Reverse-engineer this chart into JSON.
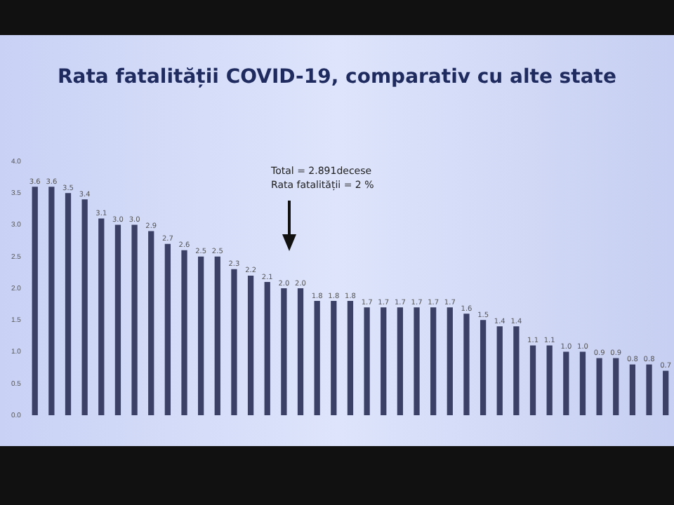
{
  "chart_data": {
    "type": "bar",
    "title": "Rata fatalității COVID-19, comparativ cu alte state",
    "categories": [
      null,
      null,
      null,
      null,
      null,
      null,
      null,
      null,
      null,
      null,
      null,
      null,
      null,
      null,
      null,
      null,
      null,
      null,
      null,
      null,
      null,
      null,
      null,
      null,
      null,
      null,
      null,
      null,
      null,
      null,
      null,
      null,
      null,
      null,
      null,
      null,
      null,
      null,
      null
    ],
    "values": [
      3.6,
      3.6,
      3.5,
      3.4,
      3.1,
      3.0,
      3.0,
      2.9,
      2.7,
      2.6,
      2.5,
      2.5,
      2.3,
      2.2,
      2.1,
      2.0,
      2.0,
      1.8,
      1.8,
      1.8,
      1.7,
      1.7,
      1.7,
      1.7,
      1.7,
      1.7,
      1.6,
      1.5,
      1.4,
      1.4,
      1.1,
      1.1,
      1.0,
      1.0,
      0.9,
      0.9,
      0.8,
      0.8,
      0.7
    ],
    "color": "#3b4066",
    "ylim": [
      0,
      4
    ],
    "yticks": [
      {
        "value": 0,
        "label": "0.0"
      },
      {
        "value": 0.5,
        "label": "0.5"
      },
      {
        "value": 1,
        "label": "1.0"
      },
      {
        "value": 1.5,
        "label": "1.5"
      },
      {
        "value": 2,
        "label": "2.0"
      },
      {
        "value": 2.5,
        "label": "2.5"
      },
      {
        "value": 3,
        "label": "3.0"
      },
      {
        "value": 3.5,
        "label": "3.5"
      },
      {
        "value": 4,
        "label": "4.0"
      }
    ],
    "grid": false,
    "value_labels": [
      "3.6",
      "3.6",
      "3.5",
      "3.4",
      "3.1",
      "3.0",
      "3.0",
      "2.9",
      "2.7",
      "2.6",
      "2.5",
      "2.5",
      "2.3",
      "2.2",
      "2.1",
      "2.0",
      "2.0",
      "1.8",
      "1.8",
      "1.8",
      "1.7",
      "1.7",
      "1.7",
      "1.7",
      "1.7",
      "1.7",
      "1.6",
      "1.5",
      "1.4",
      "1.4",
      "1.1",
      "1.1",
      "1.0",
      "1.0",
      "0.9",
      "0.9",
      "0.8",
      "0.8",
      "0.7"
    ],
    "annotations": [
      "Total =  2.891decese",
      "Rata fatalității = 2 %"
    ]
  }
}
